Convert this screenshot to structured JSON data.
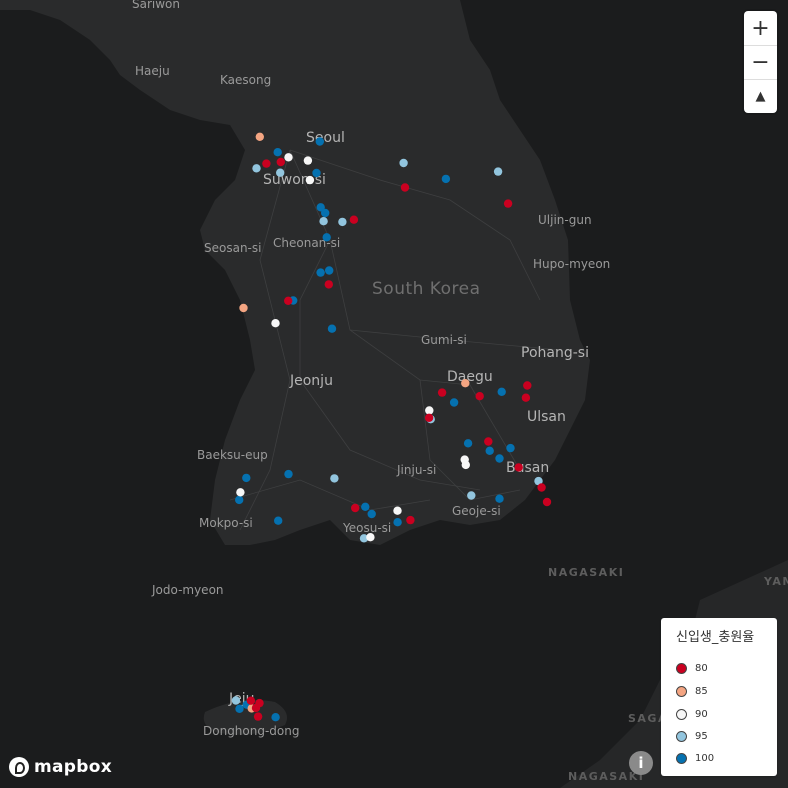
{
  "map": {
    "places": [
      {
        "name": "Sariwon",
        "kind": "town"
      },
      {
        "name": "Haeju",
        "kind": "town"
      },
      {
        "name": "Kaesong",
        "kind": "town"
      },
      {
        "name": "Seoul",
        "kind": "city"
      },
      {
        "name": "Suwon-si",
        "kind": "city"
      },
      {
        "name": "Uljin-gun",
        "kind": "town"
      },
      {
        "name": "Seosan-si",
        "kind": "town"
      },
      {
        "name": "Cheonan-si",
        "kind": "town"
      },
      {
        "name": "Hupo-myeon",
        "kind": "town"
      },
      {
        "name": "South Korea",
        "kind": "country"
      },
      {
        "name": "Gumi-si",
        "kind": "town"
      },
      {
        "name": "Pohang-si",
        "kind": "city"
      },
      {
        "name": "Daegu",
        "kind": "city"
      },
      {
        "name": "Jeonju",
        "kind": "city"
      },
      {
        "name": "Ulsan",
        "kind": "city"
      },
      {
        "name": "Baeksu-eup",
        "kind": "town"
      },
      {
        "name": "Jinju-si",
        "kind": "town"
      },
      {
        "name": "Busan",
        "kind": "city"
      },
      {
        "name": "Geoje-si",
        "kind": "town"
      },
      {
        "name": "Mokpo-si",
        "kind": "town"
      },
      {
        "name": "Yeosu-si",
        "kind": "town"
      },
      {
        "name": "NAGASAKI",
        "kind": "sea"
      },
      {
        "name": "Jodo-myeon",
        "kind": "town"
      },
      {
        "name": "Jeju",
        "kind": "city"
      },
      {
        "name": "Donghong-dong",
        "kind": "town"
      },
      {
        "name": "NAGASAKI",
        "kind": "sea"
      },
      {
        "name": "YAM",
        "kind": "sea"
      },
      {
        "name": "SAGA",
        "kind": "sea"
      }
    ]
  },
  "controls": {
    "zoom_in": "+",
    "zoom_out": "−",
    "compass": "▲"
  },
  "legend": {
    "title": "신입생_충원율",
    "items": [
      {
        "label": "80",
        "color": "#ca0020"
      },
      {
        "label": "85",
        "color": "#f4a582"
      },
      {
        "label": "90",
        "color": "#f7f7f7"
      },
      {
        "label": "95",
        "color": "#92c5de"
      },
      {
        "label": "100",
        "color": "#0571b0"
      }
    ]
  },
  "attribution": {
    "logo": "mapbox",
    "info": "i"
  },
  "colors": {
    "background": "#1b1c1d",
    "land": "#2a2b2c",
    "road": "#3a3b3c"
  },
  "points": [
    {
      "c": 4,
      "n": 28
    },
    {
      "c": 3,
      "n": 12
    },
    {
      "c": 2,
      "n": 10
    },
    {
      "c": 1,
      "n": 4
    },
    {
      "c": 0,
      "n": 22
    }
  ]
}
